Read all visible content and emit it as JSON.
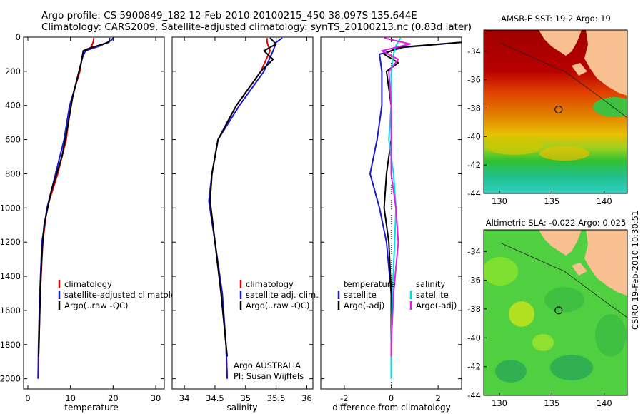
{
  "header": {
    "line1": "Argo profile: CS 5900849_182 12-Feb-2010 20100215_450 38.097S 135.644E",
    "line2": "Climatology: CARS2009. Satellite-adjusted climatology: synTS_20100213.nc (0.83d later)"
  },
  "colors": {
    "climatology": "#dd0000",
    "satellite": "#1a1acc",
    "argo": "#000000",
    "salinity_sat": "#00e0e0",
    "salinity_argo": "#e020e0"
  },
  "chart_data": [
    {
      "type": "line",
      "xlabel": "temperature",
      "xlim": [
        -1,
        32
      ],
      "ylim": [
        0,
        2060
      ],
      "xticks": [
        0,
        10,
        20,
        30
      ],
      "yticks": [
        0,
        200,
        400,
        600,
        800,
        1000,
        1200,
        1400,
        1600,
        1800,
        2000
      ],
      "legend": [
        "climatology",
        "satellite-adjusted climatology",
        "Argo(..raw -QC)"
      ],
      "series": [
        {
          "name": "climatology",
          "color": "#dd0000",
          "depth": [
            5,
            30,
            60,
            80,
            120,
            200,
            300,
            400,
            600,
            800,
            1000,
            1200,
            1500,
            1800,
            2000
          ],
          "values": [
            15.5,
            15.3,
            14.8,
            13.0,
            12.7,
            12.2,
            11.0,
            10.0,
            9.0,
            7.0,
            4.5,
            3.5,
            2.9,
            2.6,
            2.4
          ]
        },
        {
          "name": "satellite-adjusted climatology",
          "color": "#1a1acc",
          "depth": [
            5,
            20,
            50,
            80,
            120,
            200,
            300,
            400,
            600,
            800,
            1000,
            1200,
            1500,
            1800,
            2000
          ],
          "values": [
            20.0,
            19.5,
            17.0,
            13.5,
            12.8,
            12.0,
            11.0,
            9.8,
            8.5,
            6.5,
            4.5,
            3.3,
            2.8,
            2.5,
            2.4
          ]
        },
        {
          "name": "Argo(..raw -QC)",
          "color": "#000000",
          "depth": [
            5,
            30,
            60,
            80,
            150,
            250,
            350,
            500,
            700,
            900,
            1100,
            1300,
            1600,
            1800,
            1870
          ],
          "values": [
            19.2,
            19.0,
            15.0,
            13.0,
            12.5,
            11.5,
            10.5,
            9.5,
            8.0,
            5.5,
            3.8,
            3.2,
            2.8,
            2.6,
            2.5
          ]
        }
      ]
    },
    {
      "type": "line",
      "xlabel": "salinity",
      "xlim": [
        33.8,
        36.1
      ],
      "ylim": [
        0,
        2060
      ],
      "xticks": [
        "34",
        "34.5",
        "35",
        "35.5",
        "36"
      ],
      "legend": [
        "climatology",
        "satellite adj. clim.",
        "Argo(..raw -QC)"
      ],
      "annotation": [
        "Argo AUSTRALIA",
        "PI: Susan Wijffels"
      ],
      "series": [
        {
          "name": "climatology",
          "color": "#dd0000",
          "depth": [
            5,
            30,
            80,
            200,
            400,
            600,
            800,
            960,
            1200,
            1500,
            1800,
            2000
          ],
          "values": [
            35.35,
            35.35,
            35.4,
            35.25,
            34.85,
            34.55,
            34.45,
            34.42,
            34.5,
            34.6,
            34.68,
            34.7
          ]
        },
        {
          "name": "satellite adj. clim.",
          "color": "#1a1acc",
          "depth": [
            5,
            30,
            80,
            200,
            400,
            600,
            800,
            960,
            1200,
            1500,
            1800,
            2000
          ],
          "values": [
            35.6,
            35.5,
            35.45,
            35.3,
            34.9,
            34.55,
            34.45,
            34.4,
            34.5,
            34.62,
            34.68,
            34.7
          ]
        },
        {
          "name": "Argo(..raw -QC)",
          "color": "#000000",
          "depth": [
            5,
            40,
            80,
            130,
            200,
            400,
            600,
            800,
            960,
            1200,
            1500,
            1800,
            1870
          ],
          "values": [
            35.4,
            35.5,
            35.3,
            35.45,
            35.25,
            34.85,
            34.55,
            34.45,
            34.42,
            34.5,
            34.6,
            34.68,
            34.7
          ]
        }
      ]
    },
    {
      "type": "line",
      "xlabel": "difference from climatology",
      "xlim": [
        -3,
        3
      ],
      "ylim": [
        0,
        2060
      ],
      "xticks": [
        "-2",
        "0",
        "2"
      ],
      "legend": [
        "temperature",
        "satellite",
        "Argo(-adj)",
        "salinity",
        "satellite",
        "Argo(-adj)"
      ],
      "series": [
        {
          "name": "satellite",
          "color": "#1a1acc",
          "depth": [
            5,
            30,
            60,
            100,
            200,
            400,
            600,
            800,
            1000,
            1200,
            1500,
            1800,
            2000
          ],
          "values": [
            4.5,
            3.0,
            0.5,
            -0.5,
            -0.4,
            -0.4,
            -0.6,
            -0.9,
            -0.5,
            -0.2,
            0.0,
            0.0,
            0.0
          ]
        },
        {
          "name": "Argo(-adj)",
          "color": "#000000",
          "depth": [
            5,
            30,
            60,
            100,
            150,
            200,
            400,
            600,
            800,
            1000,
            1200,
            1500,
            1800,
            1870
          ],
          "values": [
            3.5,
            3.0,
            0.3,
            -0.3,
            0.3,
            -0.2,
            0.0,
            0.0,
            -0.2,
            -0.3,
            -0.1,
            0.0,
            0.0,
            0.0
          ]
        },
        {
          "name": "satellite",
          "color": "#00e0e0",
          "depth": [
            5,
            50,
            100,
            200,
            400,
            600,
            800,
            1000,
            1200,
            1500,
            1800,
            2000
          ],
          "values": [
            0.4,
            0.2,
            0.1,
            0.0,
            0.0,
            -0.1,
            0.1,
            0.2,
            0.15,
            0.05,
            0.0,
            0.0
          ]
        },
        {
          "name": "Argo(-adj)",
          "color": "#e020e0",
          "depth": [
            5,
            40,
            80,
            130,
            200,
            400,
            600,
            800,
            1000,
            1200,
            1500,
            1800,
            1870
          ],
          "values": [
            -0.3,
            0.8,
            -0.4,
            0.3,
            -0.1,
            0.0,
            0.0,
            0.0,
            0.2,
            0.3,
            0.1,
            0.0,
            0.0
          ]
        }
      ]
    },
    {
      "type": "heatmap",
      "title": "AMSR-E SST: 19.2 Argo: 19",
      "xlim": [
        128.5,
        142.2
      ],
      "ylim": [
        -44,
        -32.5
      ],
      "xticks": [
        "130",
        "135",
        "140"
      ],
      "yticks": [
        "-34",
        "-36",
        "-38",
        "-40",
        "-42",
        "-44"
      ],
      "marker": {
        "lon": 135.644,
        "lat": -38.097
      }
    },
    {
      "type": "heatmap",
      "title": "Altimetric SLA: -0.022 Argo: 0.025",
      "xlim": [
        128.5,
        142.2
      ],
      "ylim": [
        -44,
        -32.5
      ],
      "xticks": [
        "130",
        "135",
        "140"
      ],
      "yticks": [
        "-34",
        "-36",
        "-38",
        "-40",
        "-42",
        "-44"
      ],
      "marker": {
        "lon": 135.644,
        "lat": -38.097
      }
    }
  ],
  "footer_stamp": "CSIRO 19-Feb-2010 10:30:51"
}
